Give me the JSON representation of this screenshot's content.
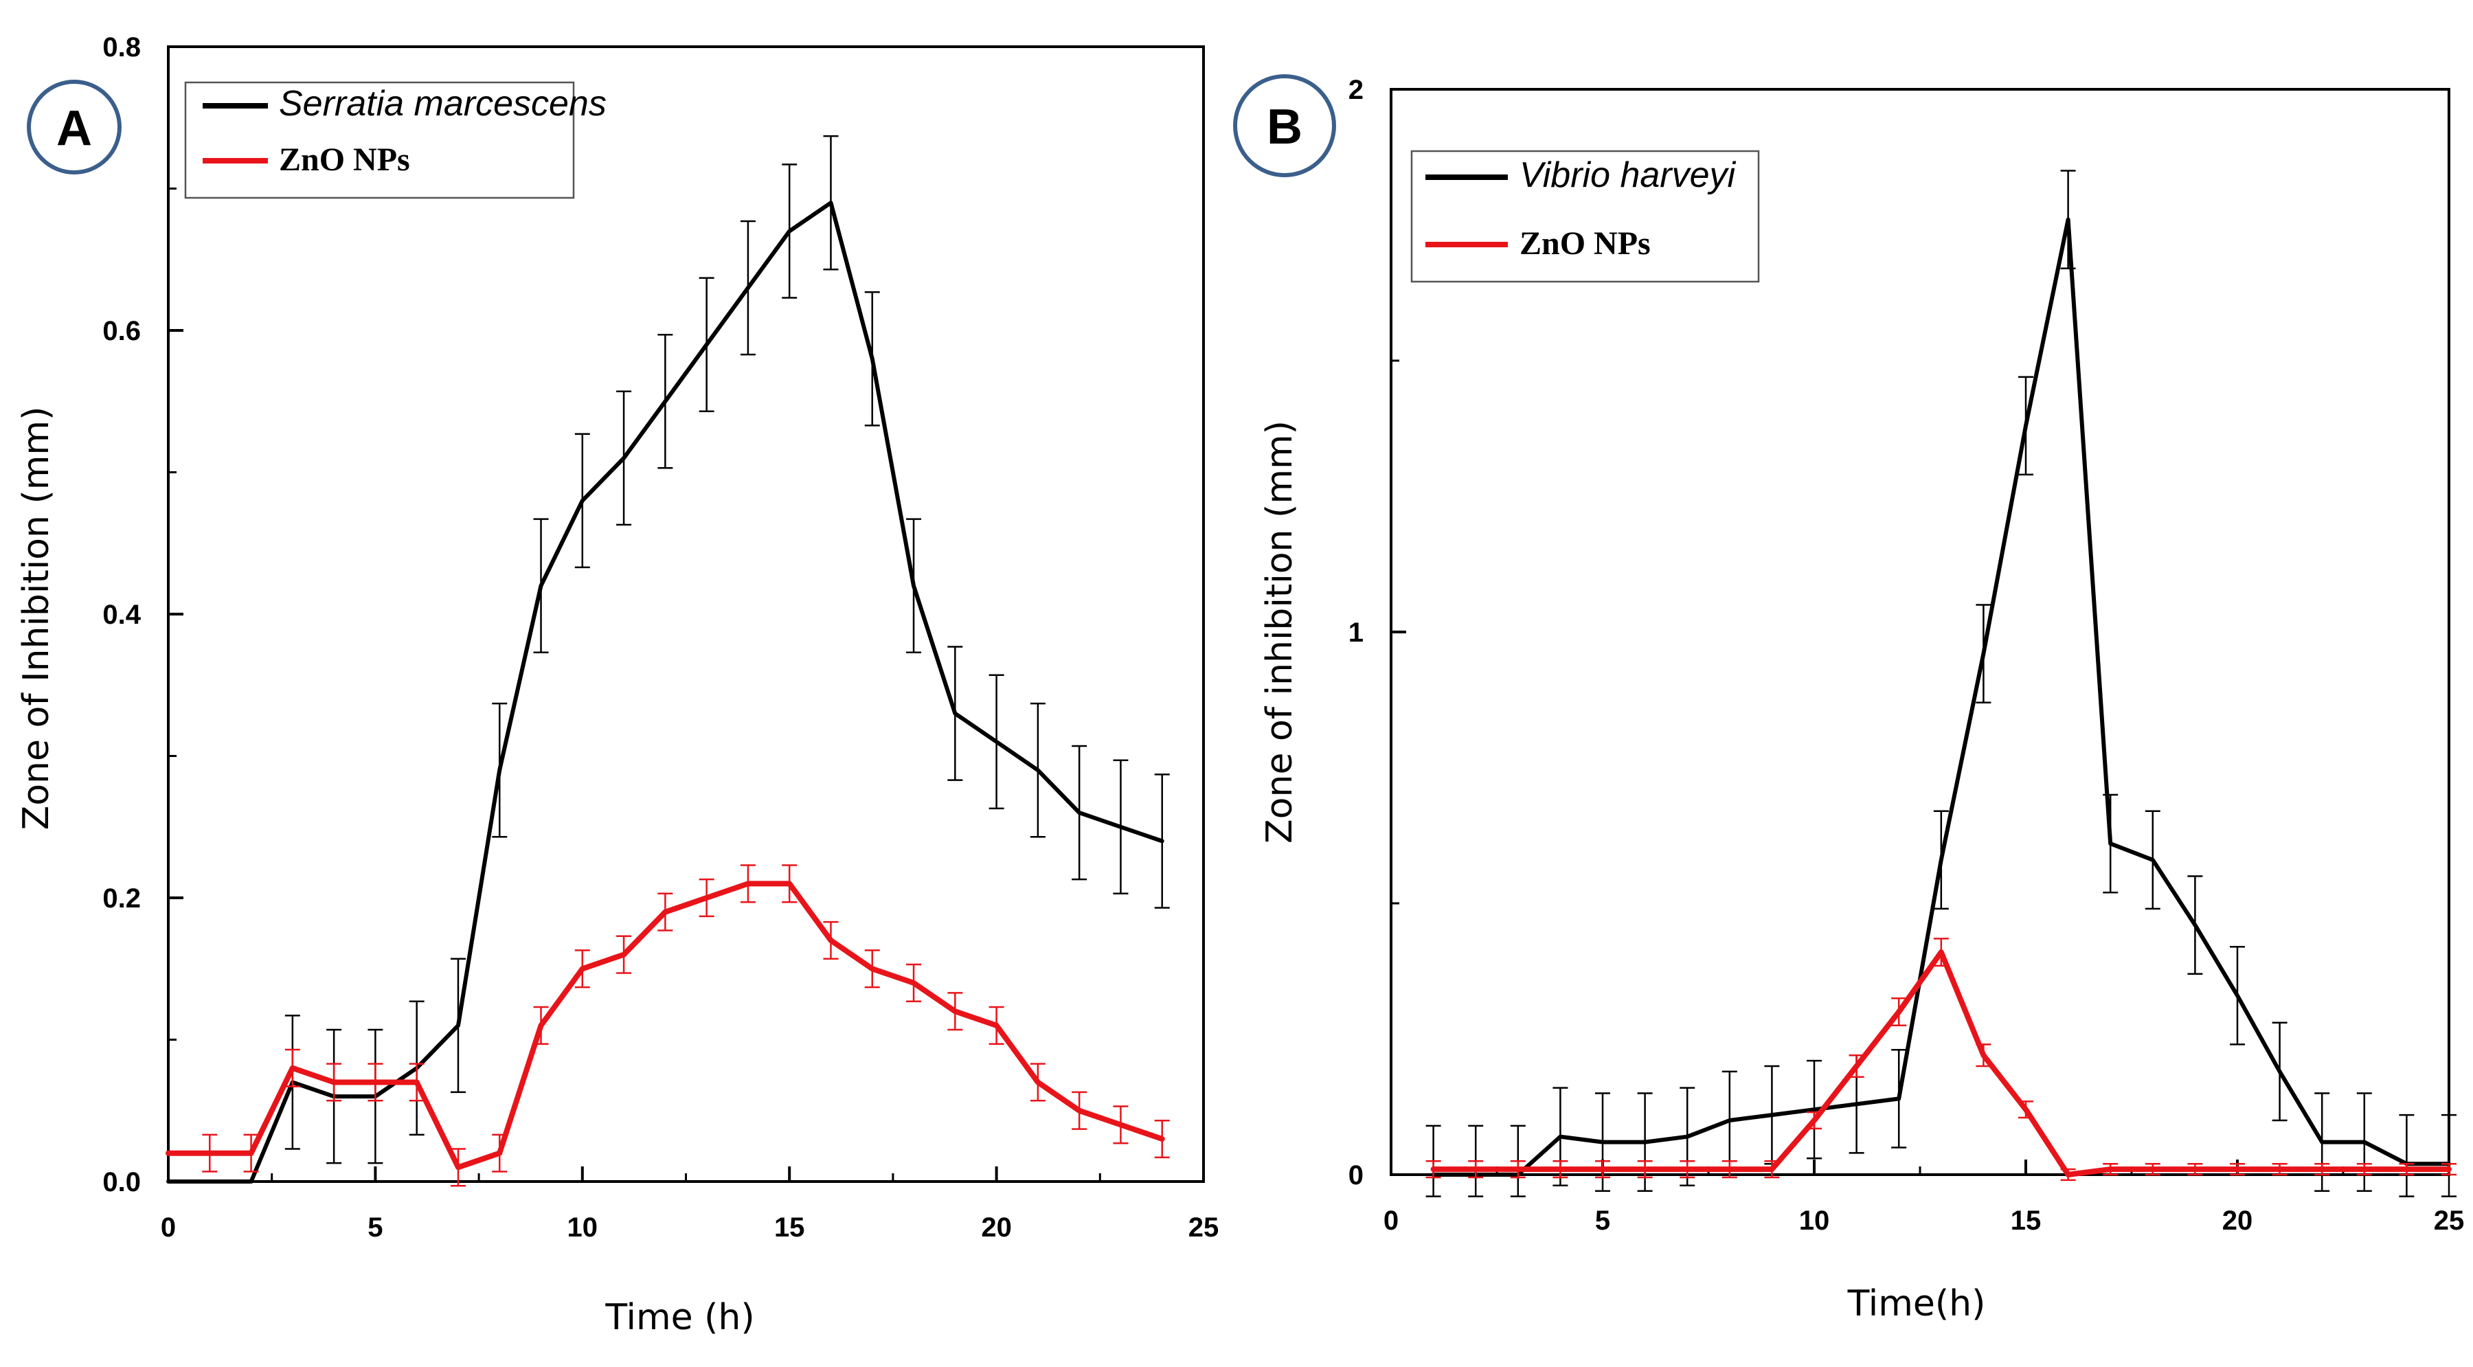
{
  "chart_data": [
    {
      "type": "line",
      "panel_label": "A",
      "xlabel": "Time (h)",
      "ylabel": "Zone of Inhibition (mm)",
      "xlim": [
        0,
        25
      ],
      "ylim": [
        0,
        0.8
      ],
      "xticks": [
        0,
        5,
        10,
        15,
        20,
        25
      ],
      "xtick_labels": [
        "0",
        "5",
        "10",
        "15",
        "20",
        "25"
      ],
      "yticks": [
        0,
        0.2,
        0.4,
        0.6,
        0.8
      ],
      "ytick_labels": [
        "0.0",
        "0.2",
        "0.4",
        "0.6",
        "0.8"
      ],
      "legend_position": "top-left",
      "series": [
        {
          "name": "Serratia marcescens",
          "color": "#000000",
          "x": [
            0,
            1,
            2,
            3,
            4,
            5,
            6,
            7,
            8,
            9,
            10,
            11,
            12,
            13,
            14,
            15,
            16,
            17,
            18,
            19,
            20,
            21,
            22,
            23,
            24
          ],
          "values": [
            0,
            0,
            0,
            0.07,
            0.06,
            0.06,
            0.08,
            0.11,
            0.29,
            0.42,
            0.48,
            0.51,
            0.55,
            0.59,
            0.63,
            0.67,
            0.69,
            0.58,
            0.42,
            0.33,
            0.31,
            0.29,
            0.26,
            0.25,
            0.24
          ],
          "errors": [
            0,
            0,
            0,
            0.047,
            0.047,
            0.047,
            0.047,
            0.047,
            0.047,
            0.047,
            0.047,
            0.047,
            0.047,
            0.047,
            0.047,
            0.047,
            0.047,
            0.047,
            0.047,
            0.047,
            0.047,
            0.047,
            0.047,
            0.047,
            0.047
          ],
          "error_positions": [
            1,
            2,
            3,
            4,
            5,
            6,
            7,
            8,
            9,
            10,
            11,
            12,
            13,
            14,
            15,
            16,
            17,
            18,
            19,
            20,
            21,
            22,
            23,
            24
          ]
        },
        {
          "name": "ZnO NPs",
          "color": "#e8141a",
          "x": [
            0,
            1,
            2,
            3,
            4,
            5,
            6,
            7,
            8,
            9,
            10,
            11,
            12,
            13,
            14,
            15,
            16,
            17,
            18,
            19,
            20,
            21,
            22,
            23,
            24
          ],
          "values": [
            0.02,
            0.02,
            0.02,
            0.08,
            0.07,
            0.07,
            0.07,
            0.01,
            0.02,
            0.11,
            0.15,
            0.16,
            0.19,
            0.2,
            0.21,
            0.21,
            0.17,
            0.15,
            0.14,
            0.12,
            0.11,
            0.07,
            0.05,
            0.04,
            0.03
          ],
          "errors": [
            0.013,
            0.013,
            0.013,
            0.013,
            0.013,
            0.013,
            0.013,
            0.013,
            0.013,
            0.013,
            0.013,
            0.013,
            0.013,
            0.013,
            0.013,
            0.013,
            0.013,
            0.013,
            0.013,
            0.013,
            0.013,
            0.013,
            0.013,
            0.013,
            0.013
          ],
          "error_positions": [
            1,
            2,
            3,
            4,
            5,
            6,
            7,
            8,
            9,
            10,
            11,
            12,
            13,
            14,
            15,
            16,
            17,
            18,
            19,
            20,
            21,
            22,
            23,
            24
          ]
        }
      ]
    },
    {
      "type": "line",
      "panel_label": "B",
      "xlabel": "Time(h)",
      "ylabel": "Zone of inhibition (mm)",
      "xlim": [
        0,
        25
      ],
      "ylim": [
        0,
        2
      ],
      "xticks": [
        0,
        5,
        10,
        15,
        20,
        25
      ],
      "xtick_labels": [
        "0",
        "5",
        "10",
        "15",
        "20",
        "25"
      ],
      "yticks": [
        0,
        1,
        2
      ],
      "ytick_labels": [
        "0",
        "1",
        "2"
      ],
      "legend_position": "top-left",
      "series": [
        {
          "name": "Vibrio harveyi",
          "color": "#000000",
          "x": [
            1,
            2,
            3,
            4,
            5,
            6,
            7,
            8,
            9,
            10,
            11,
            12,
            13,
            14,
            15,
            16,
            17,
            18,
            19,
            20,
            21,
            22,
            23,
            24,
            25
          ],
          "values": [
            0,
            0,
            0,
            0.07,
            0.06,
            0.06,
            0.07,
            0.1,
            0.11,
            0.12,
            0.13,
            0.14,
            0.58,
            0.96,
            1.38,
            1.76,
            0.61,
            0.58,
            0.46,
            0.33,
            0.19,
            0.06,
            0.06,
            0.02,
            0.02
          ],
          "errors": [
            0.09,
            0.09,
            0.09,
            0.09,
            0.09,
            0.09,
            0.09,
            0.09,
            0.09,
            0.09,
            0.09,
            0.09,
            0.09,
            0.09,
            0.09,
            0.09,
            0.09,
            0.09,
            0.09,
            0.09,
            0.09,
            0.09,
            0.09,
            0.09,
            0.09
          ],
          "error_positions": [
            1,
            2,
            3,
            4,
            5,
            6,
            7,
            8,
            9,
            10,
            11,
            12,
            13,
            14,
            15,
            16,
            17,
            18,
            19,
            20,
            21,
            22,
            23,
            24,
            25
          ]
        },
        {
          "name": "ZnO NPs",
          "color": "#e8141a",
          "x": [
            1,
            2,
            3,
            4,
            5,
            6,
            7,
            8,
            9,
            10,
            11,
            12,
            13,
            14,
            15,
            16,
            17,
            18,
            19,
            20,
            21,
            22,
            23,
            24,
            25
          ],
          "values": [
            0.01,
            0.01,
            0.01,
            0.01,
            0.01,
            0.01,
            0.01,
            0.01,
            0.01,
            0.1,
            0.2,
            0.3,
            0.41,
            0.22,
            0.12,
            0,
            0.01,
            0.01,
            0.01,
            0.01,
            0.01,
            0.01,
            0.01,
            0.01,
            0.01
          ],
          "errors": [
            0.015,
            0.015,
            0.015,
            0.015,
            0.015,
            0.015,
            0.015,
            0.015,
            0.015,
            0.015,
            0.02,
            0.025,
            0.025,
            0.02,
            0.015,
            0.01,
            0.01,
            0.01,
            0.01,
            0.01,
            0.01,
            0.01,
            0.01,
            0.01,
            0.01
          ],
          "error_positions": [
            1,
            2,
            3,
            4,
            5,
            6,
            7,
            8,
            9,
            10,
            11,
            12,
            13,
            14,
            15,
            16,
            17,
            18,
            19,
            20,
            21,
            22,
            23,
            24,
            25
          ]
        }
      ]
    }
  ]
}
